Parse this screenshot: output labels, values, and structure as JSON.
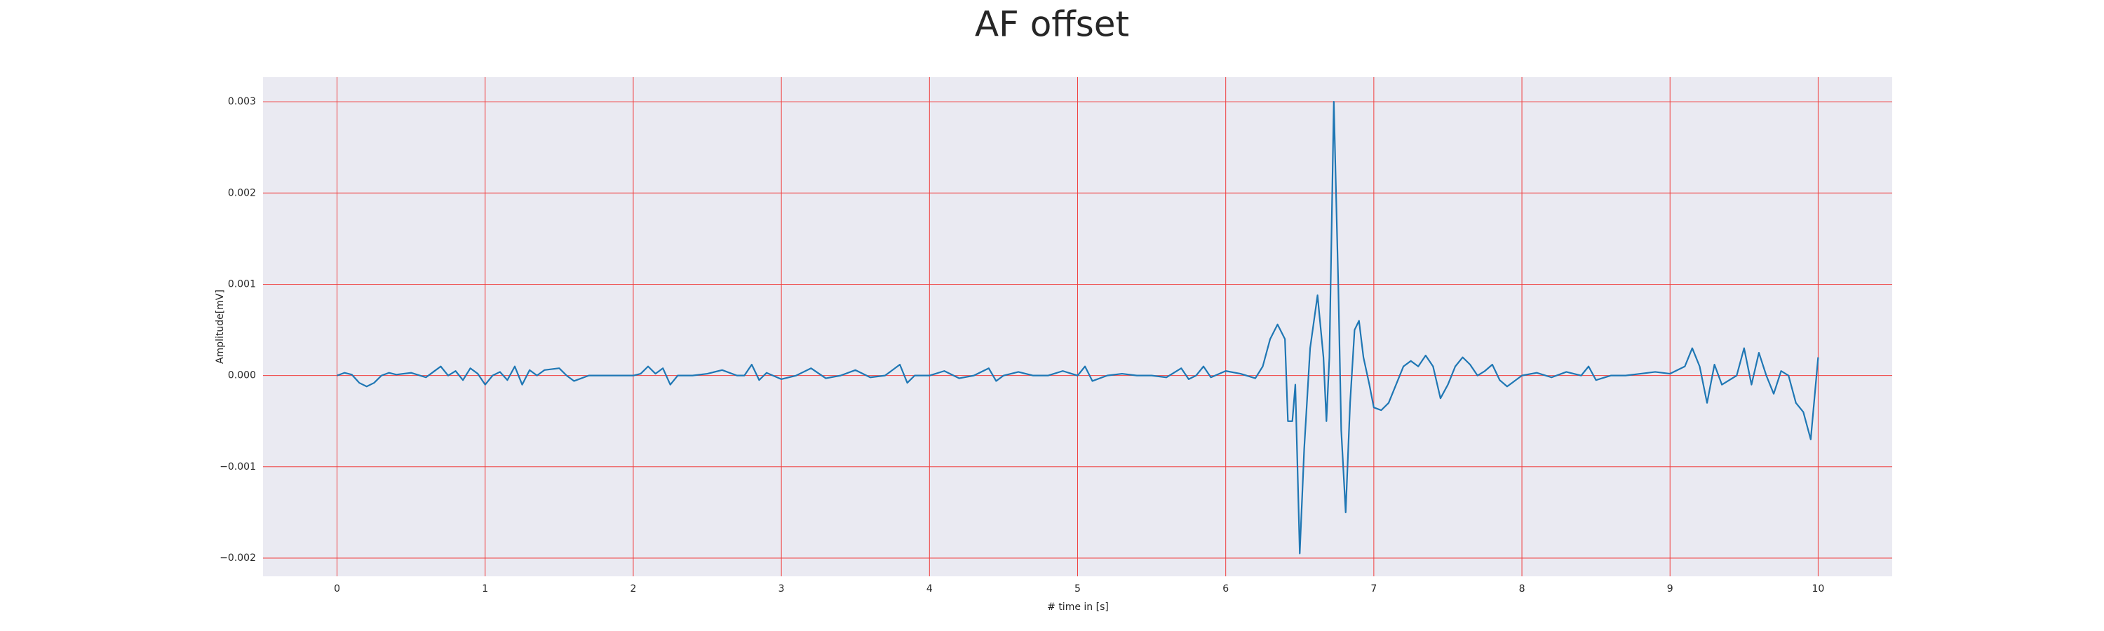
{
  "chart_data": {
    "type": "line",
    "title": "AF offset",
    "xlabel": "# time in [s]",
    "ylabel": "Amplitude[mV]",
    "x": [
      0.0,
      0.05,
      0.1,
      0.15,
      0.2,
      0.25,
      0.3,
      0.35,
      0.4,
      0.5,
      0.6,
      0.65,
      0.7,
      0.75,
      0.8,
      0.85,
      0.9,
      0.95,
      1.0,
      1.05,
      1.1,
      1.15,
      1.2,
      1.25,
      1.3,
      1.35,
      1.4,
      1.5,
      1.55,
      1.6,
      1.7,
      1.8,
      2.0,
      2.05,
      2.1,
      2.15,
      2.2,
      2.25,
      2.3,
      2.4,
      2.5,
      2.6,
      2.7,
      2.75,
      2.8,
      2.85,
      2.9,
      3.0,
      3.1,
      3.2,
      3.3,
      3.4,
      3.5,
      3.6,
      3.7,
      3.8,
      3.85,
      3.9,
      4.0,
      4.1,
      4.2,
      4.3,
      4.4,
      4.45,
      4.5,
      4.6,
      4.7,
      4.8,
      4.9,
      5.0,
      5.05,
      5.1,
      5.2,
      5.3,
      5.4,
      5.5,
      5.6,
      5.7,
      5.75,
      5.8,
      5.85,
      5.9,
      6.0,
      6.1,
      6.2,
      6.25,
      6.3,
      6.35,
      6.4,
      6.42,
      6.45,
      6.47,
      6.5,
      6.53,
      6.57,
      6.62,
      6.66,
      6.68,
      6.7,
      6.73,
      6.76,
      6.78,
      6.81,
      6.84,
      6.87,
      6.9,
      6.93,
      6.97,
      7.0,
      7.05,
      7.1,
      7.15,
      7.2,
      7.25,
      7.3,
      7.35,
      7.4,
      7.45,
      7.5,
      7.55,
      7.6,
      7.65,
      7.7,
      7.75,
      7.8,
      7.85,
      7.9,
      8.0,
      8.1,
      8.2,
      8.3,
      8.4,
      8.45,
      8.5,
      8.6,
      8.7,
      8.8,
      8.9,
      9.0,
      9.1,
      9.15,
      9.2,
      9.25,
      9.3,
      9.35,
      9.4,
      9.45,
      9.5,
      9.55,
      9.6,
      9.65,
      9.7,
      9.75,
      9.8,
      9.85,
      9.9,
      9.95,
      10.0
    ],
    "series": [
      {
        "color": "#1f77b4",
        "values": [
          0.0,
          3e-05,
          1e-05,
          -8e-05,
          -0.00012,
          -8e-05,
          0.0,
          3e-05,
          1e-05,
          3e-05,
          -2e-05,
          4e-05,
          0.0001,
          0.0,
          5e-05,
          -5e-05,
          8e-05,
          2e-05,
          -0.0001,
          0.0,
          4e-05,
          -5e-05,
          0.0001,
          -0.0001,
          6e-05,
          0.0,
          6e-05,
          8e-05,
          0.0,
          -6e-05,
          0.0,
          0.0,
          0.0,
          2e-05,
          0.0001,
          2e-05,
          8e-05,
          -0.0001,
          0.0,
          0.0,
          2e-05,
          6e-05,
          0.0,
          0.0,
          0.00012,
          -5e-05,
          3e-05,
          -4e-05,
          0.0,
          8e-05,
          -3e-05,
          0.0,
          6e-05,
          -2e-05,
          0.0,
          0.00012,
          -8e-05,
          0.0,
          0.0,
          5e-05,
          -3e-05,
          0.0,
          8e-05,
          -6e-05,
          0.0,
          4e-05,
          0.0,
          0.0,
          5e-05,
          0.0,
          0.0001,
          -6e-05,
          0.0,
          2e-05,
          0.0,
          0.0,
          -2e-05,
          8e-05,
          -4e-05,
          0.0,
          0.0001,
          -2e-05,
          5e-05,
          2e-05,
          -3e-05,
          0.0001,
          0.0004,
          0.00056,
          0.0004,
          -0.0005,
          -0.0005,
          -0.0001,
          -0.00195,
          -0.0008,
          0.0003,
          0.00088,
          0.0002,
          -0.0005,
          0.0002,
          0.003,
          0.001,
          -0.0006,
          -0.0015,
          -0.0003,
          0.0005,
          0.0006,
          0.0002,
          -0.0001,
          -0.00035,
          -0.00038,
          -0.0003,
          -0.0001,
          0.0001,
          0.00016,
          0.0001,
          0.00022,
          0.0001,
          -0.00025,
          -0.0001,
          0.0001,
          0.0002,
          0.00012,
          0.0,
          5e-05,
          0.00012,
          -5e-05,
          -0.00012,
          0.0,
          3e-05,
          -2e-05,
          4e-05,
          0.0,
          0.0001,
          -5e-05,
          0.0,
          0.0,
          2e-05,
          4e-05,
          2e-05,
          0.0001,
          0.0003,
          0.0001,
          -0.0003,
          0.00012,
          -0.0001,
          -5e-05,
          0.0,
          0.0003,
          -0.0001,
          0.00025,
          0.0,
          -0.0002,
          5e-05,
          0.0,
          -0.0003,
          -0.0004,
          -0.0007,
          0.0002
        ]
      }
    ],
    "xlim": [
      -0.5,
      10.5
    ],
    "ylim": [
      -0.0022,
      0.00327
    ],
    "xticks": [
      0,
      1,
      2,
      3,
      4,
      5,
      6,
      7,
      8,
      9,
      10
    ],
    "yticks": [
      0.003,
      0.002,
      0.001,
      {
        "value": 0,
        "label": "0.000"
      },
      {
        "value": -0.001,
        "label": "−0.001"
      },
      {
        "value": -0.002,
        "label": "−0.002"
      }
    ],
    "grid": true,
    "grid_color": "#f04040",
    "background": "#eaeaf2"
  }
}
